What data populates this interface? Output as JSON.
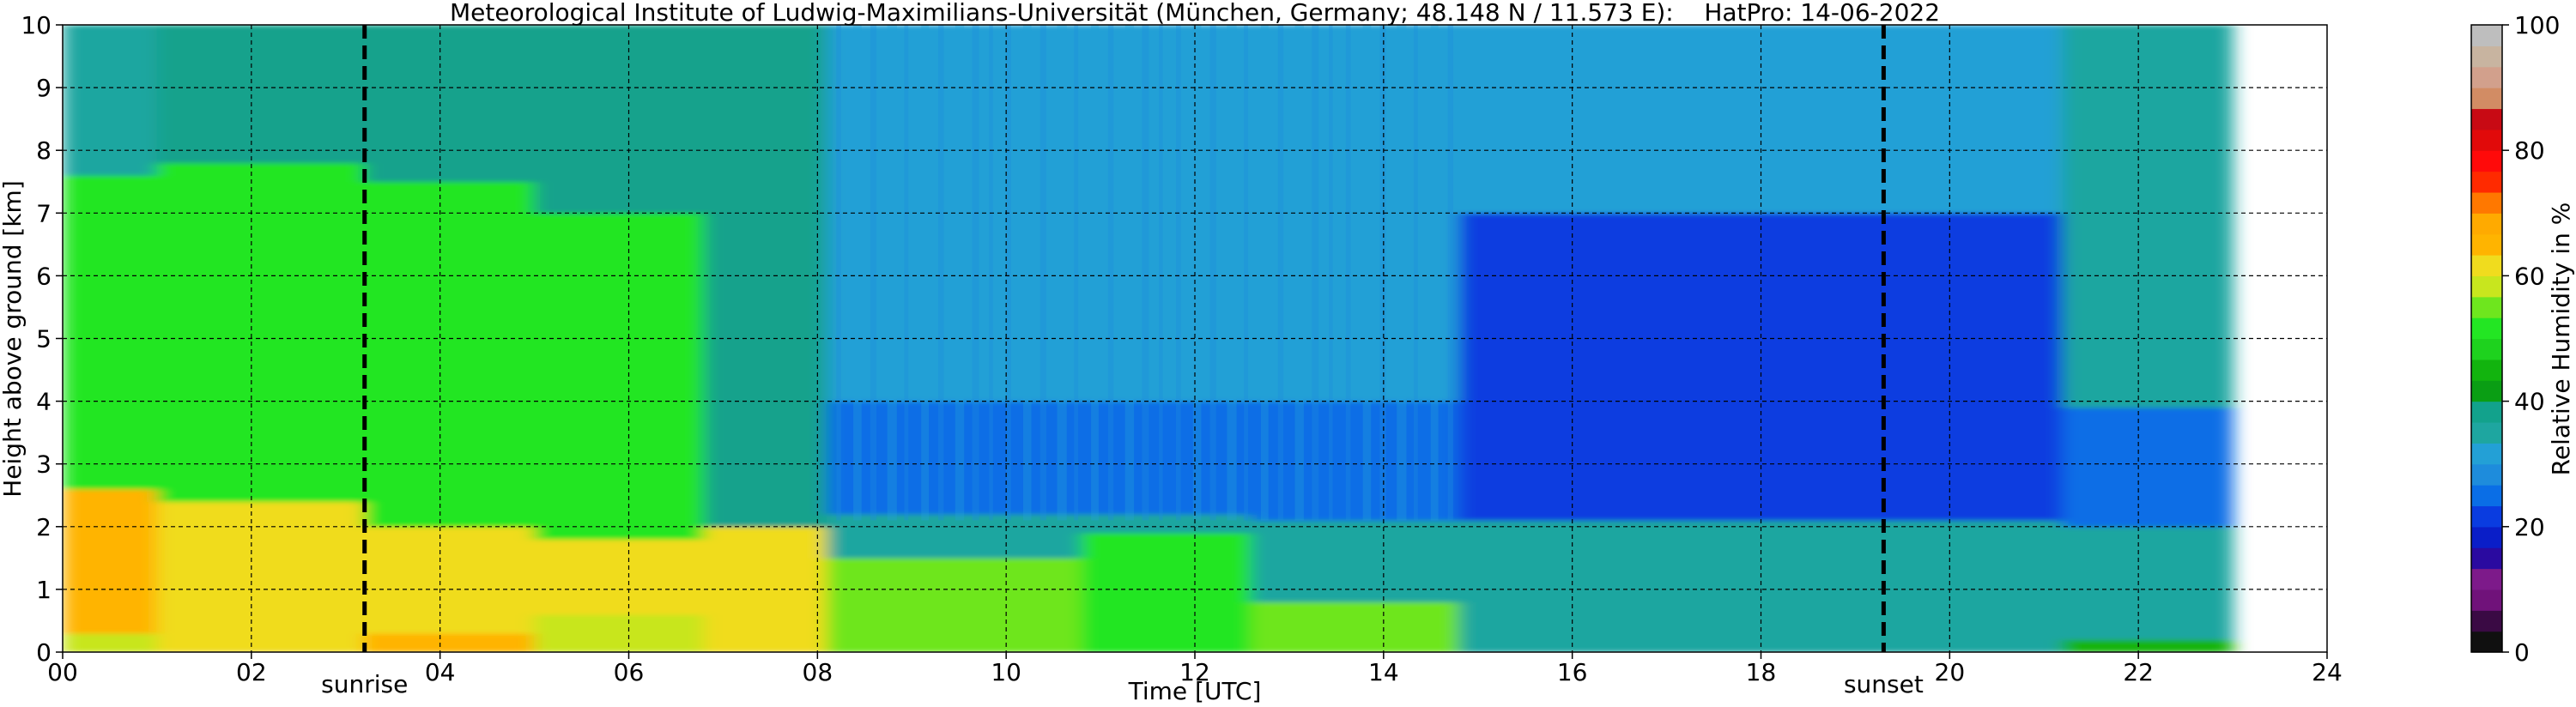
{
  "chart_data": {
    "type": "heatmap",
    "title": "Meteorological Institute of Ludwig-Maximilians-Universität (München, Germany; 48.148 N / 11.573 E):    HatPro: 14-06-2022",
    "xlabel": "Time [UTC]",
    "ylabel": "Height above ground [km]",
    "xlim": [
      0,
      24
    ],
    "ylim": [
      0,
      10
    ],
    "x_ticks": [
      "00",
      "02",
      "04",
      "06",
      "08",
      "10",
      "12",
      "14",
      "16",
      "18",
      "20",
      "22",
      "24"
    ],
    "y_ticks": [
      "0",
      "1",
      "2",
      "3",
      "4",
      "5",
      "6",
      "7",
      "8",
      "9",
      "10"
    ],
    "grid": true,
    "data_end_hour": 23.0,
    "colorbar": {
      "label": "Relative Humidity in %",
      "range": [
        0,
        100
      ],
      "ticks": [
        "0",
        "20",
        "40",
        "60",
        "80",
        "100"
      ],
      "colors": [
        "#101010",
        "#3a0a44",
        "#70127a",
        "#7d1a8a",
        "#2a0aa0",
        "#0a1ec8",
        "#0a3ce0",
        "#0a6ee6",
        "#1e8cdc",
        "#23a0d6",
        "#1ea6a0",
        "#12a28c",
        "#0a9e14",
        "#12b40e",
        "#1ed21e",
        "#23e623",
        "#6ee61e",
        "#c8e61e",
        "#f0dc1e",
        "#ffb400",
        "#ffaa00",
        "#ff7800",
        "#ff2a00",
        "#ff0a0a",
        "#e10a0a",
        "#c80a14",
        "#d28c64",
        "#d2a08c",
        "#c8b4a0",
        "#bebebe"
      ]
    },
    "annotations": [
      {
        "x": 3.2,
        "label": "sunrise"
      },
      {
        "x": 19.3,
        "label": "sunset"
      }
    ],
    "relative_humidity_profiles": [
      {
        "hours": [
          0.0,
          1.0
        ],
        "layers": [
          {
            "top_km": 0.3,
            "rh": 58
          },
          {
            "top_km": 2.6,
            "rh": 64
          },
          {
            "top_km": 7.6,
            "rh": 52
          },
          {
            "top_km": 10,
            "rh": 36
          }
        ]
      },
      {
        "hours": [
          1.0,
          3.2
        ],
        "layers": [
          {
            "top_km": 0.3,
            "rh": 60
          },
          {
            "top_km": 2.4,
            "rh": 62
          },
          {
            "top_km": 7.8,
            "rh": 51
          },
          {
            "top_km": 10,
            "rh": 37
          }
        ]
      },
      {
        "hours": [
          3.2,
          5.0
        ],
        "layers": [
          {
            "top_km": 0.3,
            "rh": 64
          },
          {
            "top_km": 2.0,
            "rh": 60
          },
          {
            "top_km": 7.5,
            "rh": 50
          },
          {
            "top_km": 10,
            "rh": 38
          }
        ]
      },
      {
        "hours": [
          5.0,
          6.8
        ],
        "layers": [
          {
            "top_km": 0.6,
            "rh": 58
          },
          {
            "top_km": 1.8,
            "rh": 63
          },
          {
            "top_km": 7.0,
            "rh": 52
          },
          {
            "top_km": 10,
            "rh": 37
          }
        ]
      },
      {
        "hours": [
          6.8,
          8.1
        ],
        "layers": [
          {
            "top_km": 2.0,
            "rh": 60
          },
          {
            "top_km": 10,
            "rh": 38
          }
        ]
      },
      {
        "hours": [
          8.1,
          10.8
        ],
        "layers": [
          {
            "top_km": 1.5,
            "rh": 56
          },
          {
            "top_km": 2.2,
            "rh": 36
          },
          {
            "top_km": 4.0,
            "rh": 24
          },
          {
            "top_km": 10,
            "rh": 30
          }
        ]
      },
      {
        "hours": [
          10.8,
          12.6
        ],
        "layers": [
          {
            "top_km": 1.9,
            "rh": 50
          },
          {
            "top_km": 2.2,
            "rh": 36
          },
          {
            "top_km": 4.0,
            "rh": 26
          },
          {
            "top_km": 10,
            "rh": 30
          }
        ]
      },
      {
        "hours": [
          12.6,
          14.8
        ],
        "layers": [
          {
            "top_km": 0.8,
            "rh": 54
          },
          {
            "top_km": 2.1,
            "rh": 36
          },
          {
            "top_km": 4.0,
            "rh": 24
          },
          {
            "top_km": 10,
            "rh": 30
          }
        ]
      },
      {
        "hours": [
          14.8,
          21.2
        ],
        "layers": [
          {
            "top_km": 2.1,
            "rh": 36
          },
          {
            "top_km": 7.0,
            "rh": 20
          },
          {
            "top_km": 10,
            "rh": 30
          }
        ]
      },
      {
        "hours": [
          21.2,
          23.0
        ],
        "layers": [
          {
            "top_km": 0.2,
            "rh": 46
          },
          {
            "top_km": 2.0,
            "rh": 36
          },
          {
            "top_km": 3.9,
            "rh": 24
          },
          {
            "top_km": 10,
            "rh": 36
          }
        ]
      }
    ]
  }
}
